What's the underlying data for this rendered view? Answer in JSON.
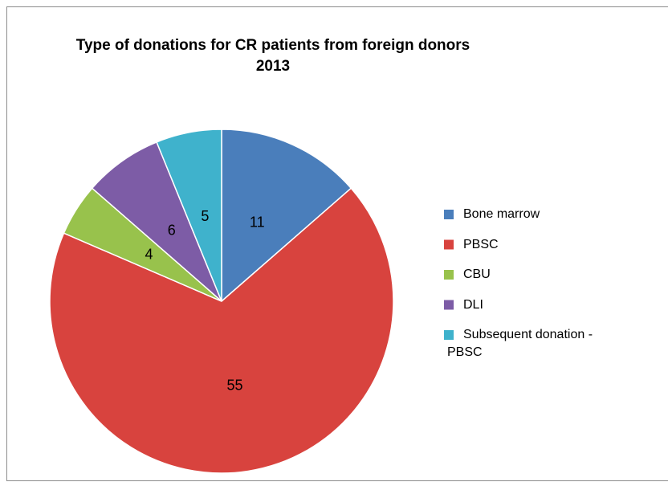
{
  "chart_data": {
    "type": "pie",
    "title": "Type of donations for CR patients from foreign donors",
    "subtitle": "2013",
    "categories": [
      "Bone marrow",
      "PBSC",
      "CBU",
      "DLI",
      "Subsequent donation - PBSC"
    ],
    "values": [
      11,
      55,
      4,
      6,
      5
    ],
    "colors": [
      "#4a7ebb",
      "#d8433e",
      "#98c24c",
      "#7d5ca6",
      "#3fb2cc"
    ],
    "legend": "right"
  }
}
